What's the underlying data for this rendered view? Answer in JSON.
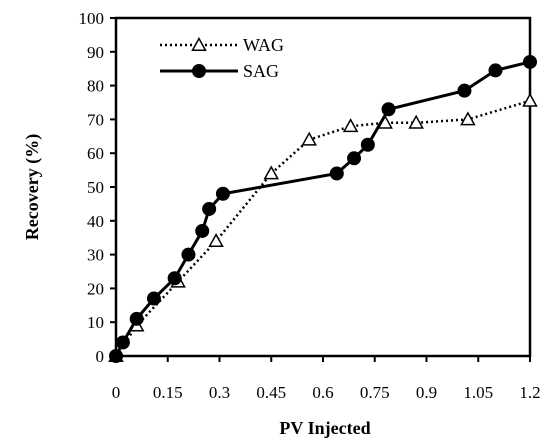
{
  "chart_data": {
    "type": "line",
    "title": "",
    "xlabel": "PV Injected",
    "ylabel": "Recovery (%)",
    "xlim": [
      0,
      1.2
    ],
    "ylim": [
      0,
      100
    ],
    "x_ticks": [
      "0",
      "0.15",
      "0.3",
      "0.45",
      "0.6",
      "0.75",
      "0.9",
      "1.05",
      "1.2"
    ],
    "y_ticks": [
      "0",
      "10",
      "20",
      "30",
      "40",
      "50",
      "60",
      "70",
      "80",
      "90",
      "100"
    ],
    "grid": false,
    "legend_position": "top-left",
    "series": [
      {
        "name": "WAG",
        "line_style": "dotted",
        "marker": "open-triangle",
        "color": "#000000",
        "points": [
          [
            0.0,
            0
          ],
          [
            0.06,
            9
          ],
          [
            0.18,
            22
          ],
          [
            0.29,
            34
          ],
          [
            0.45,
            54
          ],
          [
            0.56,
            64
          ],
          [
            0.68,
            68
          ],
          [
            0.78,
            69
          ],
          [
            0.87,
            69
          ],
          [
            1.02,
            70
          ],
          [
            1.2,
            75.5
          ]
        ]
      },
      {
        "name": "SAG",
        "line_style": "solid",
        "marker": "filled-circle",
        "color": "#000000",
        "points": [
          [
            0.0,
            0
          ],
          [
            0.02,
            4
          ],
          [
            0.06,
            11
          ],
          [
            0.11,
            17
          ],
          [
            0.17,
            23
          ],
          [
            0.21,
            30
          ],
          [
            0.25,
            37
          ],
          [
            0.27,
            43.5
          ],
          [
            0.31,
            48
          ],
          [
            0.64,
            54
          ],
          [
            0.69,
            58.5
          ],
          [
            0.73,
            62.5
          ],
          [
            0.79,
            73
          ],
          [
            1.01,
            78.5
          ],
          [
            1.1,
            84.5
          ],
          [
            1.2,
            87
          ]
        ]
      }
    ]
  }
}
